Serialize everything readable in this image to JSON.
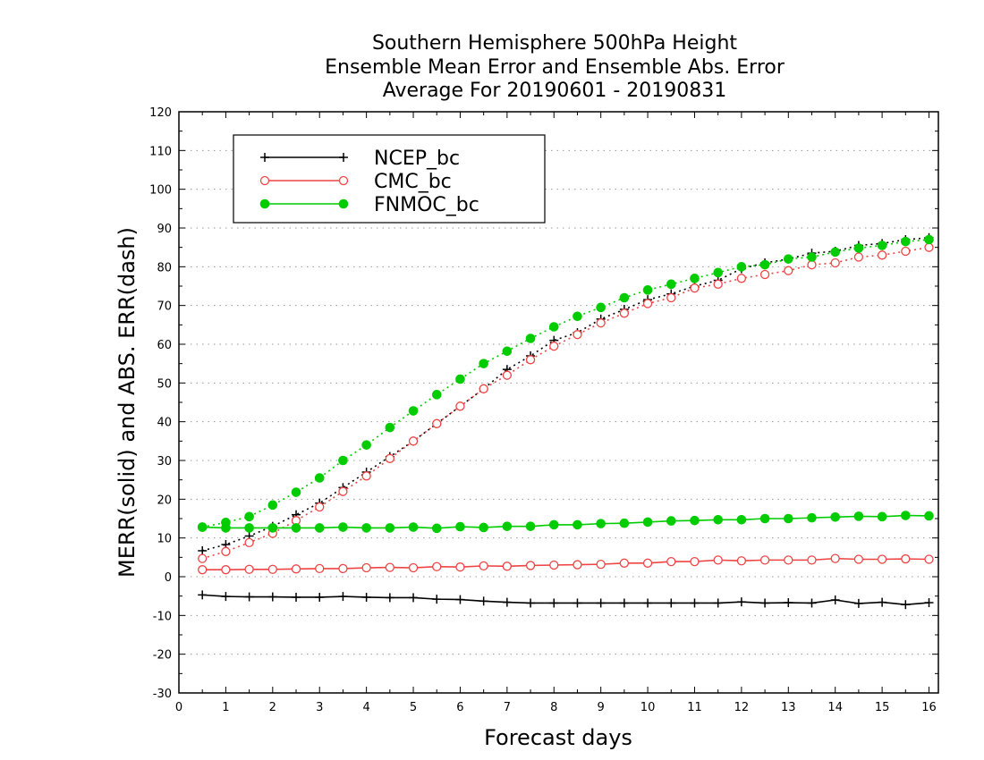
{
  "chart_data": {
    "type": "line",
    "title": [
      "Southern Hemisphere 500hPa Height",
      "Ensemble Mean Error and Ensemble Abs. Error",
      "Average For 20190601 - 20190831"
    ],
    "xlabel": "Forecast days",
    "ylabel": "MERR(solid) and ABS. ERR(dash)",
    "xlim": [
      0,
      16.2
    ],
    "ylim": [
      -30,
      120
    ],
    "xticks": [
      "0",
      "1",
      "2",
      "3",
      "4",
      "5",
      "6",
      "7",
      "8",
      "9",
      "10",
      "11",
      "12",
      "13",
      "14",
      "15",
      "16"
    ],
    "yticks": [
      "-30",
      "-20",
      "-10",
      "0",
      "10",
      "20",
      "30",
      "40",
      "50",
      "60",
      "70",
      "80",
      "90",
      "100",
      "110",
      "120"
    ],
    "grid": "horizontal dotted",
    "legend_position": "top-left",
    "x": [
      0.5,
      1,
      1.5,
      2,
      2.5,
      3,
      3.5,
      4,
      4.5,
      5,
      5.5,
      6,
      6.5,
      7,
      7.5,
      8,
      8.5,
      9,
      9.5,
      10,
      10.5,
      11,
      11.5,
      12,
      12.5,
      13,
      13.5,
      14,
      14.5,
      15,
      15.5,
      16
    ],
    "series": [
      {
        "name": "NCEP_bc",
        "color": "#000000",
        "marker": "plus",
        "abs_error": [
          6.7,
          8.3,
          10.5,
          13,
          16,
          19,
          23,
          27,
          31,
          35,
          39.5,
          44,
          48.5,
          53.5,
          57,
          61,
          63,
          66.5,
          69,
          71.5,
          73,
          75,
          76.5,
          79.5,
          81,
          82,
          83.5,
          84,
          85.5,
          86,
          87,
          87.5
        ],
        "mean_error": [
          -4.7,
          -5.1,
          -5.2,
          -5.2,
          -5.3,
          -5.3,
          -5.1,
          -5.3,
          -5.4,
          -5.4,
          -5.8,
          -5.9,
          -6.3,
          -6.6,
          -6.8,
          -6.8,
          -6.8,
          -6.8,
          -6.8,
          -6.8,
          -6.8,
          -6.8,
          -6.8,
          -6.5,
          -6.8,
          -6.7,
          -6.8,
          -6.0,
          -6.9,
          -6.6,
          -7.2,
          -6.7
        ]
      },
      {
        "name": "CMC_bc",
        "color": "#ee4444",
        "marker": "open-circle",
        "abs_error": [
          4.7,
          6.5,
          8.8,
          11.2,
          14.5,
          18,
          22,
          26,
          30.5,
          35,
          39.5,
          44,
          48.5,
          52,
          56,
          59.5,
          62.5,
          65.5,
          68,
          70.5,
          72,
          74.5,
          75.5,
          77,
          78,
          79,
          80.5,
          81,
          82.5,
          83,
          84,
          85
        ],
        "mean_error": [
          1.8,
          1.8,
          1.9,
          1.9,
          2.0,
          2.1,
          2.1,
          2.3,
          2.4,
          2.3,
          2.6,
          2.5,
          2.8,
          2.7,
          2.9,
          3.0,
          3.1,
          3.2,
          3.5,
          3.5,
          3.9,
          3.9,
          4.3,
          4.1,
          4.3,
          4.3,
          4.3,
          4.7,
          4.5,
          4.5,
          4.6,
          4.5
        ]
      },
      {
        "name": "FNMOC_bc",
        "color": "#00cc00",
        "marker": "filled-circle",
        "abs_error": [
          12.8,
          14,
          15.5,
          18.5,
          21.8,
          25.5,
          30,
          34,
          38.5,
          42.8,
          47,
          51,
          55,
          58.2,
          61.5,
          64.5,
          67.2,
          69.5,
          72,
          74,
          75.5,
          77,
          78.5,
          80,
          80.5,
          82,
          82.5,
          83.8,
          84.8,
          85.5,
          86.5,
          87
        ],
        "mean_error": [
          12.8,
          12.6,
          12.6,
          12.6,
          12.6,
          12.6,
          12.8,
          12.6,
          12.6,
          12.8,
          12.5,
          12.9,
          12.7,
          13.0,
          13.0,
          13.4,
          13.4,
          13.7,
          13.8,
          14.1,
          14.4,
          14.5,
          14.7,
          14.7,
          15.0,
          15.0,
          15.2,
          15.4,
          15.6,
          15.5,
          15.8,
          15.7
        ]
      }
    ]
  }
}
